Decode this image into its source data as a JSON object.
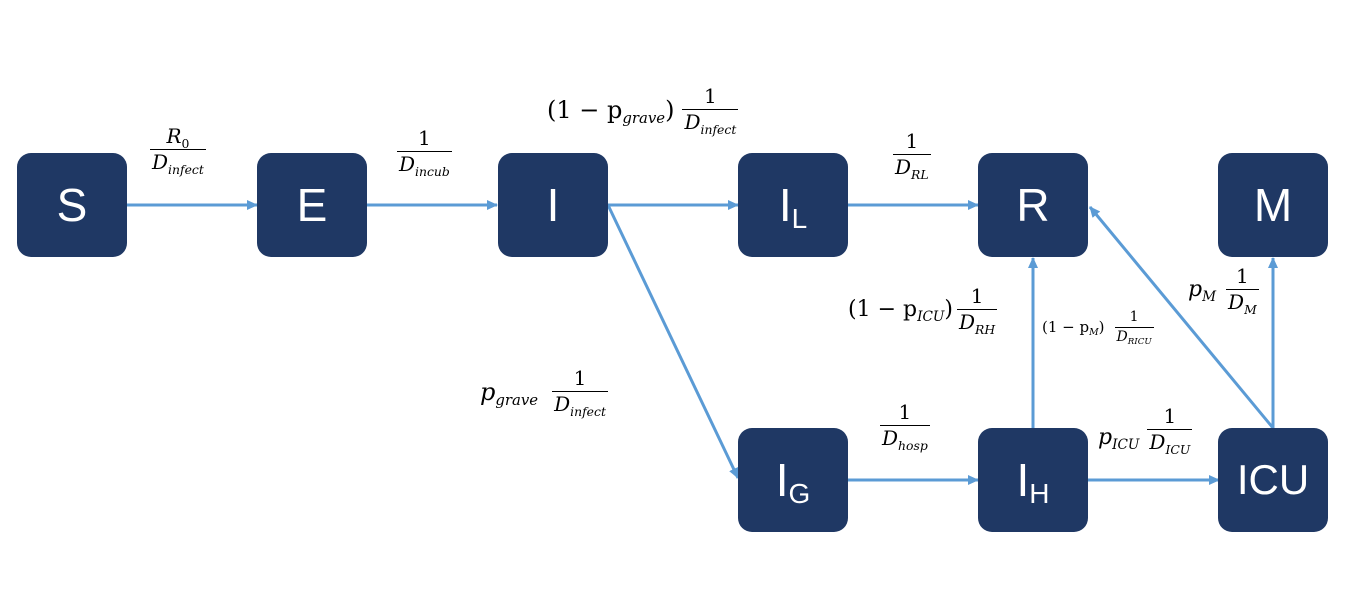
{
  "colors": {
    "node_fill": "#1f3864",
    "node_text": "#ffffff",
    "arrow": "#5b9bd5",
    "label": "#000000"
  },
  "nodes": {
    "S": {
      "main": "S",
      "sub": ""
    },
    "E": {
      "main": "E",
      "sub": ""
    },
    "I": {
      "main": "I",
      "sub": ""
    },
    "IL": {
      "main": "I",
      "sub": "L"
    },
    "R": {
      "main": "R",
      "sub": ""
    },
    "M": {
      "main": "M",
      "sub": ""
    },
    "IG": {
      "main": "I",
      "sub": "G"
    },
    "IH": {
      "main": "I",
      "sub": "H"
    },
    "ICU": {
      "main": "ICU",
      "sub": ""
    }
  },
  "labels": {
    "s_e": {
      "num_base": "R",
      "num_sub": "0",
      "den_base": "D",
      "den_sub": "infect"
    },
    "e_i": {
      "num": "1",
      "den_base": "D",
      "den_sub": "incub"
    },
    "i_il": {
      "coef_open": "(1 − p",
      "coef_sub": "grave",
      "coef_close": ")",
      "num": "1",
      "den_base": "D",
      "den_sub": "infect"
    },
    "il_r": {
      "num": "1",
      "den_base": "D",
      "den_sub": "RL"
    },
    "i_ig": {
      "coef_base": "p",
      "coef_sub": "grave",
      "num": "1",
      "den_base": "D",
      "den_sub": "infect"
    },
    "ig_ih": {
      "num": "1",
      "den_base": "D",
      "den_sub": "hosp"
    },
    "ih_r": {
      "coef_open": "(1 − p",
      "coef_sub": "ICU",
      "coef_close": ")",
      "num": "1",
      "den_base": "D",
      "den_sub": "RH"
    },
    "icu_r": {
      "coef_open": "(1 − p",
      "coef_sub": "M",
      "coef_close": ")",
      "num": "1",
      "den_base": "D",
      "den_sub": "RICU"
    },
    "ih_icu": {
      "coef_base": "p",
      "coef_sub": "ICU",
      "num": "1",
      "den_base": "D",
      "den_sub": "ICU"
    },
    "icu_m": {
      "coef_base": "p",
      "coef_sub": "M",
      "num": "1",
      "den_base": "D",
      "den_sub": "M"
    }
  }
}
